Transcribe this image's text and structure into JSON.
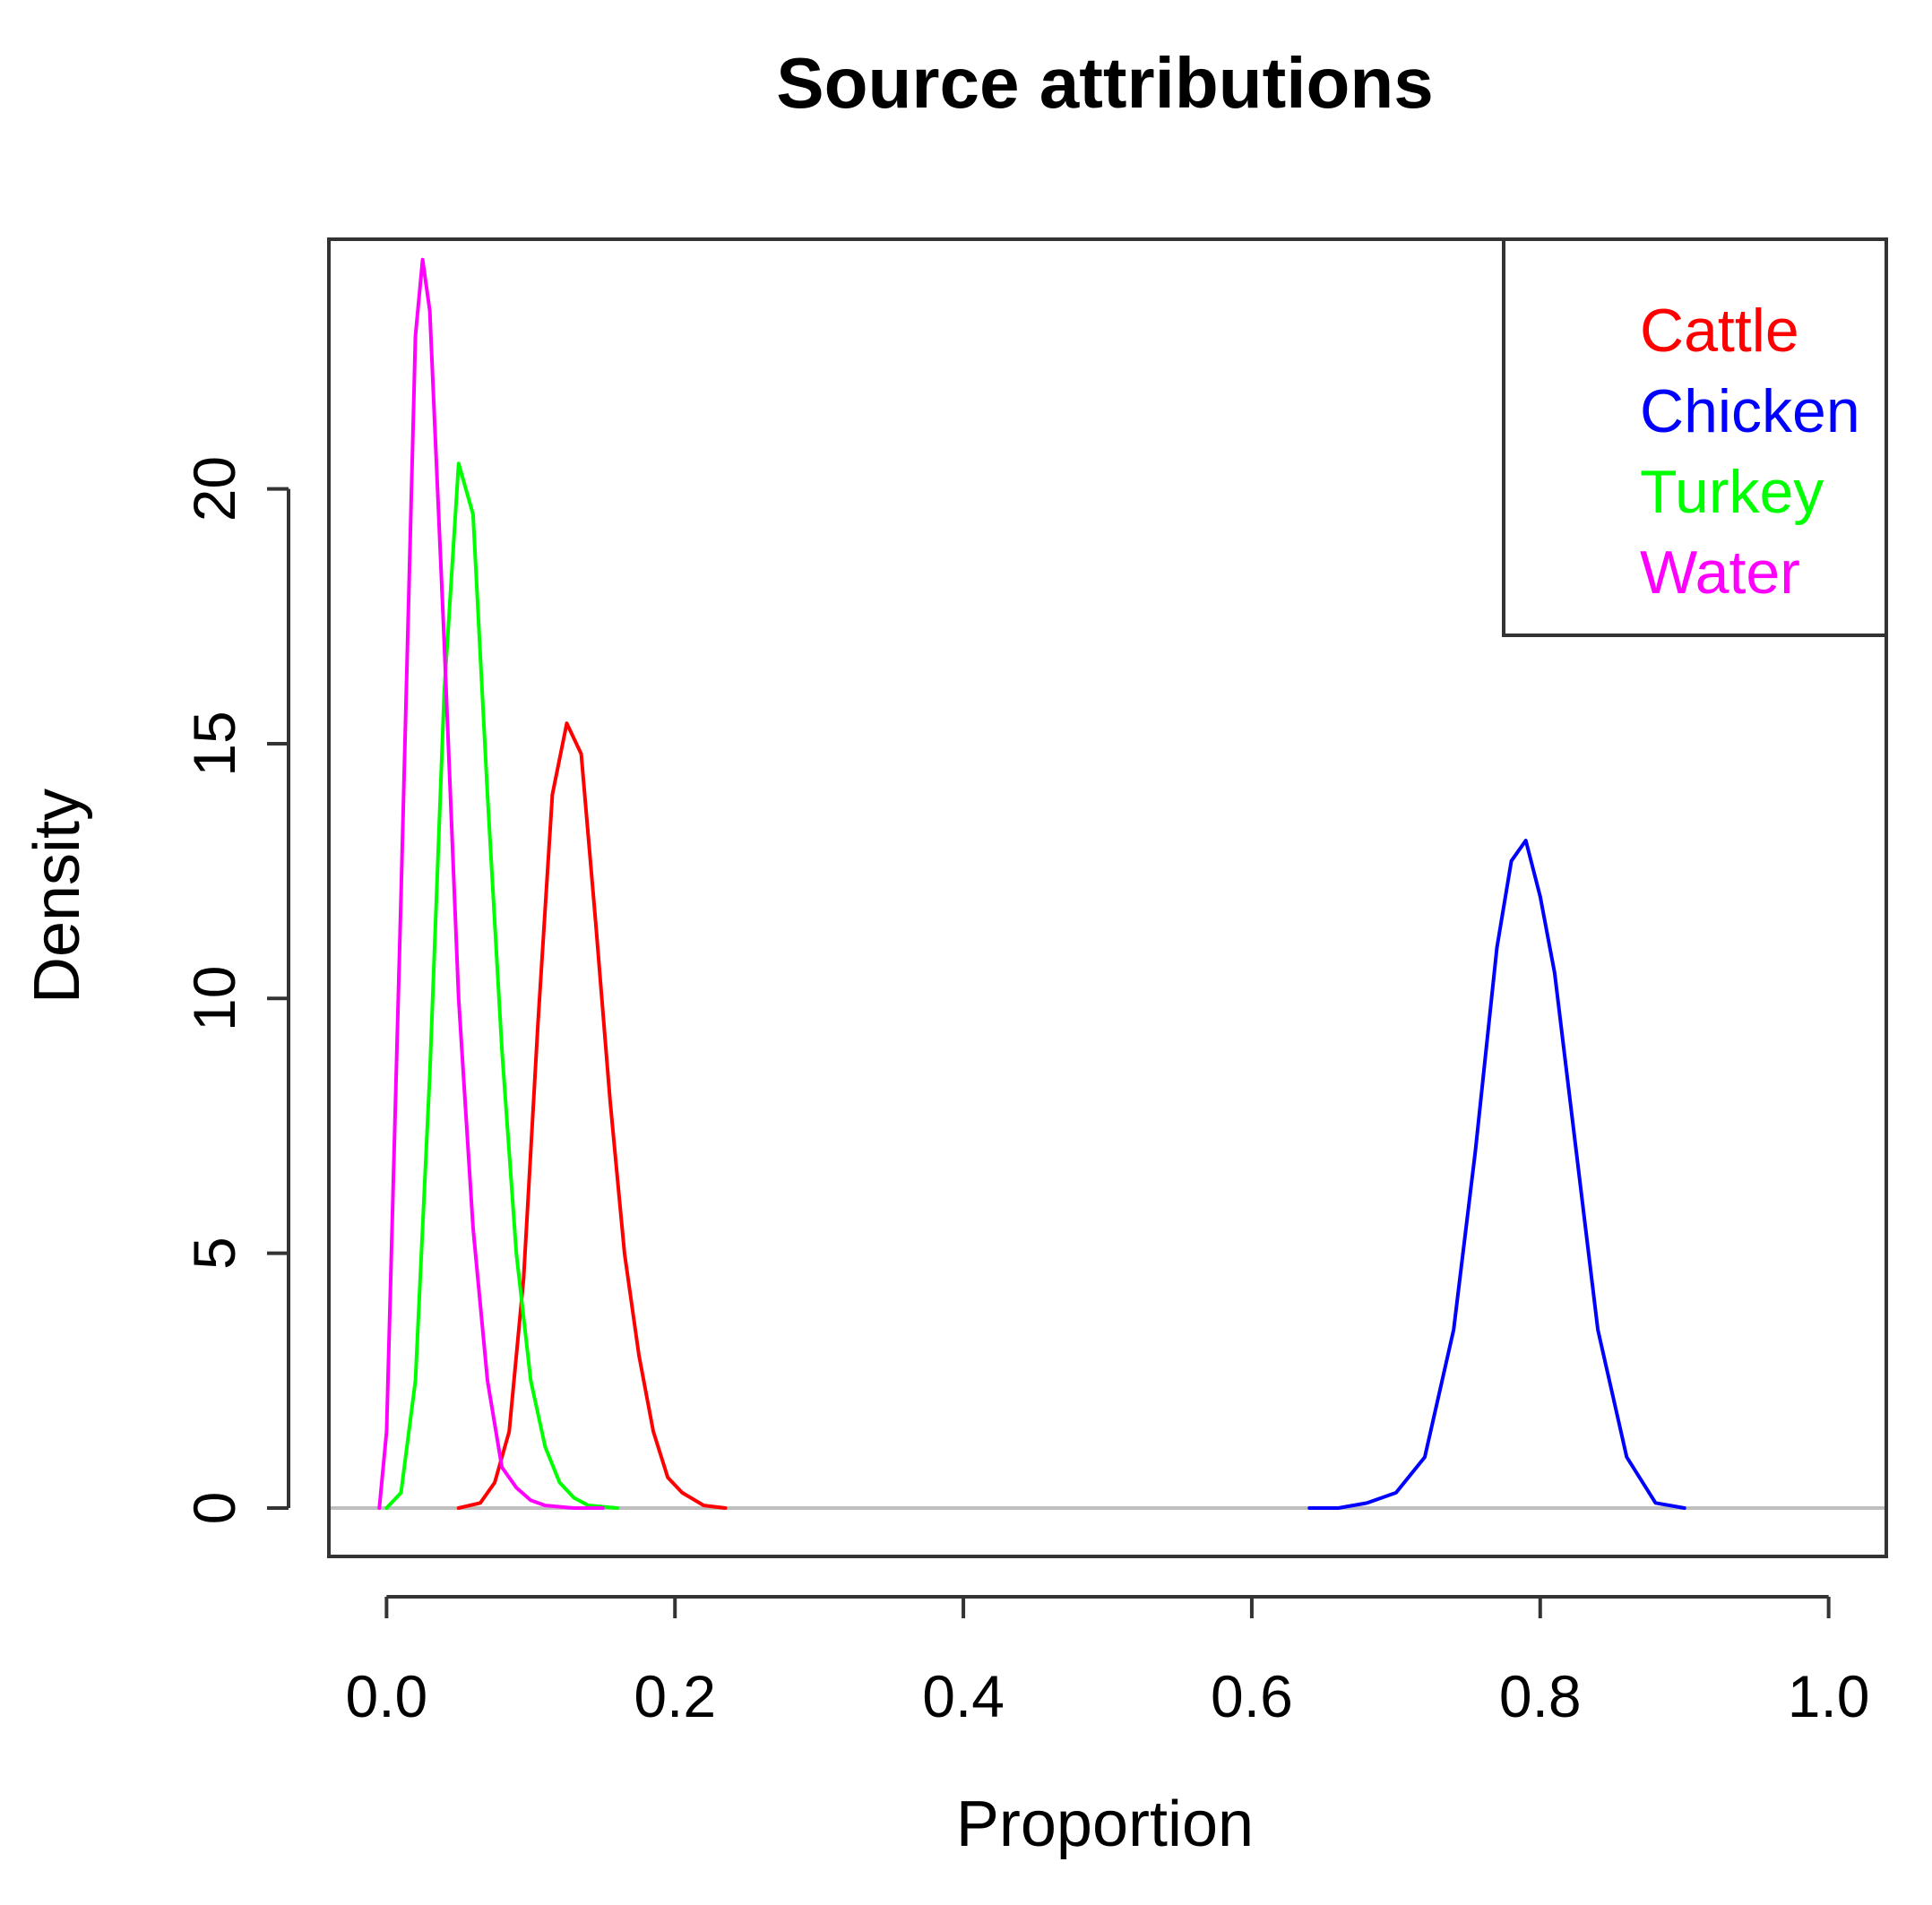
{
  "chart_data": {
    "type": "line",
    "title": "Source attributions",
    "xlabel": "Proportion",
    "ylabel": "Density",
    "xlim": [
      -0.04,
      1.04
    ],
    "ylim": [
      -0.95,
      24.9
    ],
    "x_ticks": [
      0.0,
      0.2,
      0.4,
      0.6,
      0.8,
      1.0
    ],
    "x_tick_labels": [
      "0.0",
      "0.2",
      "0.4",
      "0.6",
      "0.8",
      "1.0"
    ],
    "y_ticks": [
      0,
      5,
      10,
      15,
      20
    ],
    "y_tick_labels": [
      "0",
      "5",
      "10",
      "15",
      "20"
    ],
    "grid": false,
    "baseline": {
      "y": 0,
      "color": "#bebebe"
    },
    "legend": {
      "position": "top-right",
      "entries": [
        {
          "label": "Cattle",
          "color": "#ff0000"
        },
        {
          "label": "Chicken",
          "color": "#0000ff"
        },
        {
          "label": "Turkey",
          "color": "#00ff00"
        },
        {
          "label": "Water",
          "color": "#ff00ff"
        }
      ]
    },
    "series": [
      {
        "name": "Cattle",
        "color": "#ff0000",
        "x": [
          0.05,
          0.065,
          0.075,
          0.085,
          0.095,
          0.105,
          0.115,
          0.125,
          0.135,
          0.145,
          0.155,
          0.165,
          0.175,
          0.185,
          0.195,
          0.205,
          0.22,
          0.235
        ],
        "y": [
          0.0,
          0.1,
          0.5,
          1.5,
          4.5,
          9.5,
          14.0,
          15.4,
          14.8,
          11.5,
          8.0,
          5.0,
          3.0,
          1.5,
          0.6,
          0.3,
          0.05,
          0.0
        ]
      },
      {
        "name": "Chicken",
        "color": "#0000ff",
        "x": [
          0.64,
          0.66,
          0.68,
          0.7,
          0.72,
          0.74,
          0.755,
          0.77,
          0.78,
          0.79,
          0.8,
          0.81,
          0.825,
          0.84,
          0.86,
          0.88,
          0.9
        ],
        "y": [
          0.0,
          0.0,
          0.1,
          0.3,
          1.0,
          3.5,
          7.0,
          11.0,
          12.7,
          13.1,
          12.0,
          10.5,
          7.0,
          3.5,
          1.0,
          0.1,
          0.0
        ]
      },
      {
        "name": "Turkey",
        "color": "#00ff00",
        "x": [
          0.0,
          0.01,
          0.02,
          0.03,
          0.04,
          0.05,
          0.06,
          0.07,
          0.08,
          0.09,
          0.1,
          0.11,
          0.12,
          0.13,
          0.14,
          0.16
        ],
        "y": [
          0.0,
          0.3,
          2.5,
          8.5,
          16.0,
          20.5,
          19.5,
          14.0,
          9.0,
          5.0,
          2.5,
          1.2,
          0.5,
          0.2,
          0.05,
          0.0
        ]
      },
      {
        "name": "Water",
        "color": "#ff00ff",
        "x": [
          -0.005,
          0.0,
          0.01,
          0.02,
          0.025,
          0.03,
          0.04,
          0.05,
          0.06,
          0.07,
          0.08,
          0.09,
          0.1,
          0.11,
          0.13,
          0.15
        ],
        "y": [
          0.0,
          1.5,
          12.0,
          23.0,
          24.5,
          23.5,
          17.0,
          10.0,
          5.5,
          2.5,
          0.8,
          0.4,
          0.15,
          0.05,
          0.0,
          0.0
        ]
      }
    ]
  }
}
